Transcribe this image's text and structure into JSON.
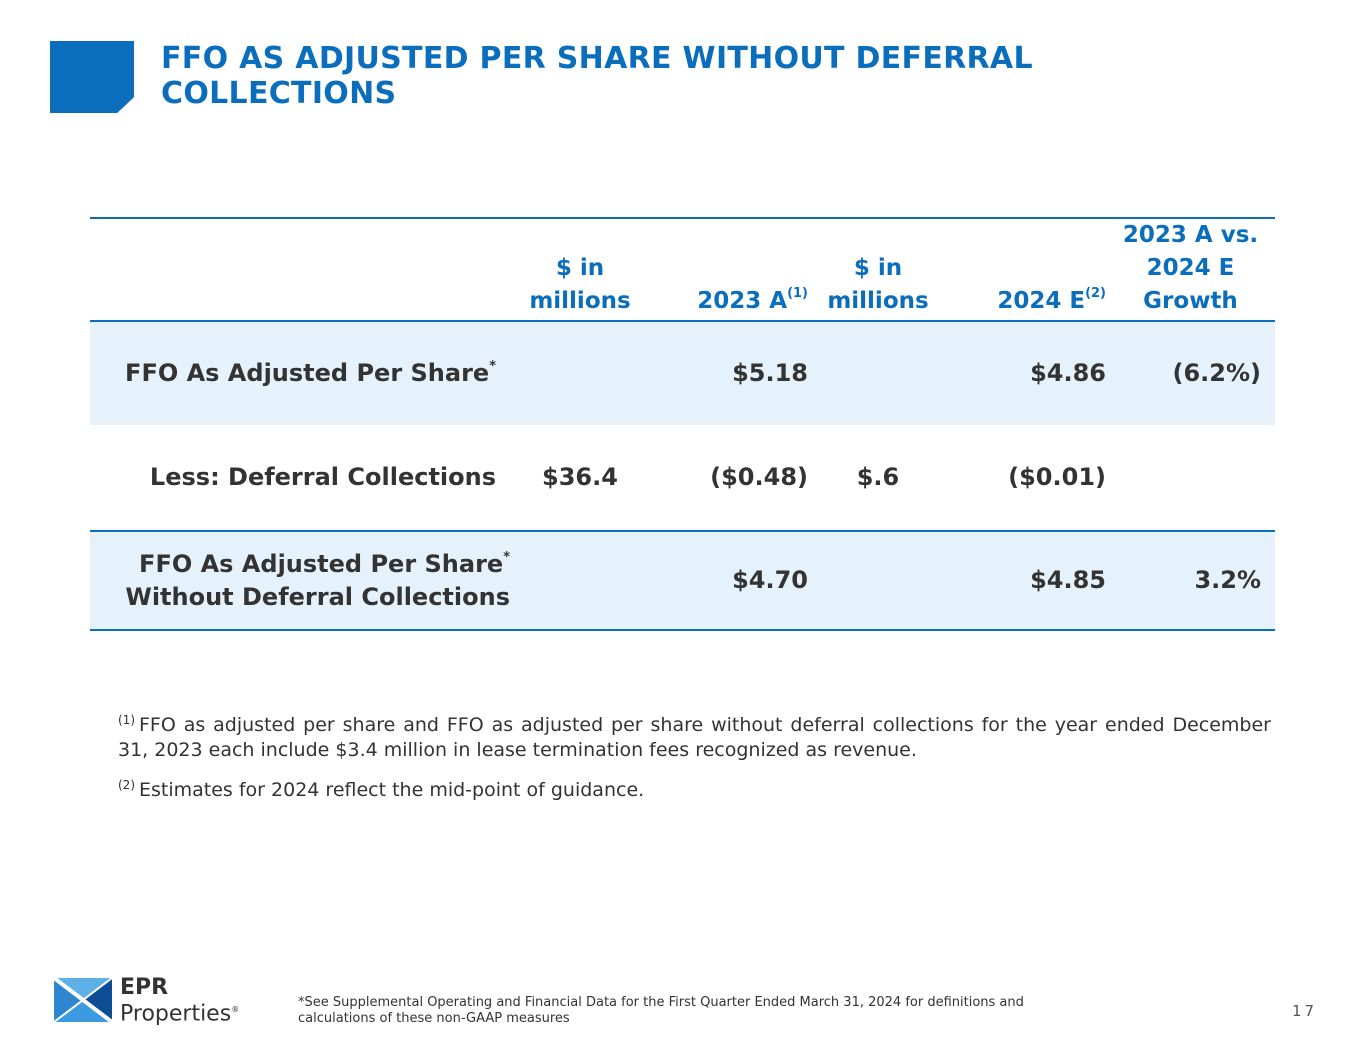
{
  "slide": {
    "title": "FFO AS ADJUSTED PER SHARE WITHOUT DEFERRAL COLLECTIONS",
    "page_number": "17"
  },
  "table": {
    "headers": [
      {
        "text": ""
      },
      {
        "text": "$ in millions"
      },
      {
        "text": "2023 A",
        "sup": "(1)"
      },
      {
        "text": "$ in millions"
      },
      {
        "text": "2024 E",
        "sup": "(2)"
      },
      {
        "text": "2023 A vs. 2024 E Growth"
      }
    ],
    "rows": [
      {
        "label": "FFO As Adjusted Per Share",
        "label_sup": "*",
        "label_line2": "",
        "m2023": "",
        "v2023": "$5.18",
        "m2024": "",
        "v2024": "$4.86",
        "growth": "(6.2%)"
      },
      {
        "label": "Less: Deferral Collections",
        "label_sup": "",
        "label_line2": "",
        "m2023": "$36.4",
        "v2023": "($0.48)",
        "m2024": "$.6",
        "v2024": "($0.01)",
        "growth": ""
      },
      {
        "label": "FFO As Adjusted Per Share",
        "label_sup": "*",
        "label_line2": "Without Deferral Collections",
        "m2023": "",
        "v2023": "$4.70",
        "m2024": "",
        "v2024": "$4.85",
        "growth": "3.2%"
      }
    ]
  },
  "notes": [
    {
      "marker": "(1)",
      "text": "FFO as adjusted per share and FFO as adjusted per share without deferral collections for the year ended December 31, 2023 each include $3.4 million in lease termination fees recognized as revenue."
    },
    {
      "marker": "(2)",
      "text": "Estimates for 2024 reflect the mid-point of guidance."
    }
  ],
  "footer": {
    "logo_line1": "EPR",
    "logo_line2": "Properties",
    "logo_mark": "®",
    "disclaimer": "*See Supplemental Operating and Financial Data for the First Quarter Ended March 31, 2024 for definitions and calculations of these non-GAAP measures"
  },
  "colors": {
    "brand_blue": "#0a6ebd",
    "shade": "#e6f2fb",
    "text": "#333333"
  },
  "icons": {
    "title_mark": "square-corner-cut-icon",
    "logo": "epr-logo-icon"
  }
}
